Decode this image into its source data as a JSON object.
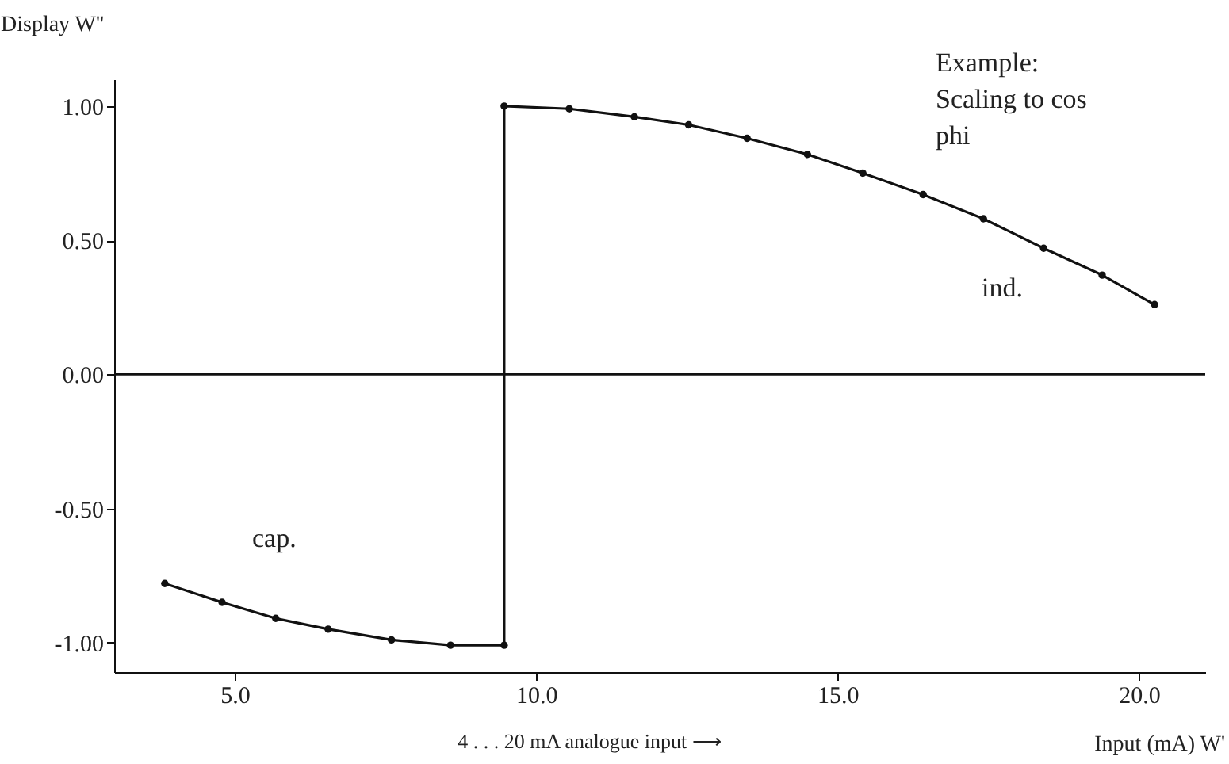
{
  "chart_data": {
    "type": "line",
    "ylabel": "Display W''",
    "xlabel": "Input (mA) W'",
    "x": [
      3.84,
      4.79,
      5.68,
      6.55,
      7.6,
      8.58,
      9.47,
      9.47,
      10.55,
      11.63,
      12.53,
      13.5,
      14.5,
      15.42,
      16.42,
      17.42,
      18.42,
      19.39,
      20.26
    ],
    "series": [
      {
        "color": "#111111",
        "values": [
          -0.78,
          -0.85,
          -0.91,
          -0.95,
          -0.99,
          -1.01,
          -1.01,
          1.0,
          0.99,
          0.96,
          0.93,
          0.88,
          0.82,
          0.75,
          0.67,
          0.58,
          0.47,
          0.37,
          0.26
        ]
      }
    ],
    "xlim": [
      3.0,
      21.1
    ],
    "ylim": [
      -1.11,
      1.1
    ],
    "xticks": [
      {
        "value": 5,
        "label": "5.0"
      },
      {
        "value": 10,
        "label": "10.0"
      },
      {
        "value": 15,
        "label": "15.0"
      },
      {
        "value": 20,
        "label": "20.0"
      }
    ],
    "yticks": [
      {
        "value": -1,
        "label": "-1.00"
      },
      {
        "value": -0.5,
        "label": "-0.50"
      },
      {
        "value": 0,
        "label": "0.00"
      },
      {
        "value": 0.5,
        "label": "0.50"
      },
      {
        "value": 1,
        "label": "1.00"
      }
    ],
    "ref_lines": [
      {
        "axis": "y",
        "value": 0,
        "color": "#111111"
      }
    ],
    "annotations": [
      "Example: Scaling to cos phi",
      "4 . . . 20 mA  analogue input ⟶",
      "cap.",
      "ind."
    ],
    "marker": "circle",
    "line_style": "solid",
    "grid": false
  }
}
